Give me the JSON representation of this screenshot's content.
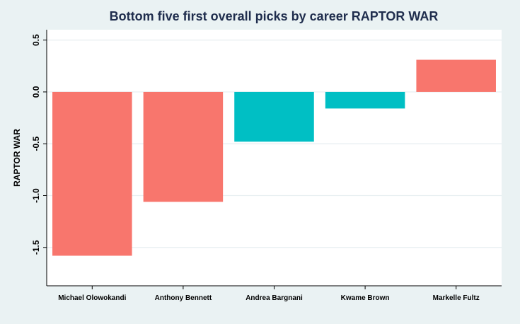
{
  "chart_data": {
    "type": "bar",
    "title": "Bottom five first overall picks by career RAPTOR WAR",
    "xlabel": "",
    "ylabel": "RAPTOR WAR",
    "categories": [
      "Michael Olowokandi",
      "Anthony Bennett",
      "Andrea Bargnani",
      "Kwame Brown",
      "Markelle Fultz"
    ],
    "values": [
      -1.58,
      -1.06,
      -0.48,
      -0.16,
      0.31
    ],
    "bar_colors": [
      "#f8766d",
      "#f8766d",
      "#00bfc4",
      "#00bfc4",
      "#f8766d"
    ],
    "ylim": [
      -1.87,
      0.6
    ],
    "yticks": [
      0.5,
      0.0,
      -0.5,
      -1.0,
      -1.5
    ],
    "ytick_labels": [
      "0.5",
      "0.0",
      "-0.5",
      "-1.0",
      "-1.5"
    ],
    "grid": true,
    "legend": "none",
    "colors": {
      "background": "#eaf2f3",
      "plot_background": "#ffffff",
      "title": "#1f2d4d",
      "grid": "#e6eef0"
    }
  }
}
